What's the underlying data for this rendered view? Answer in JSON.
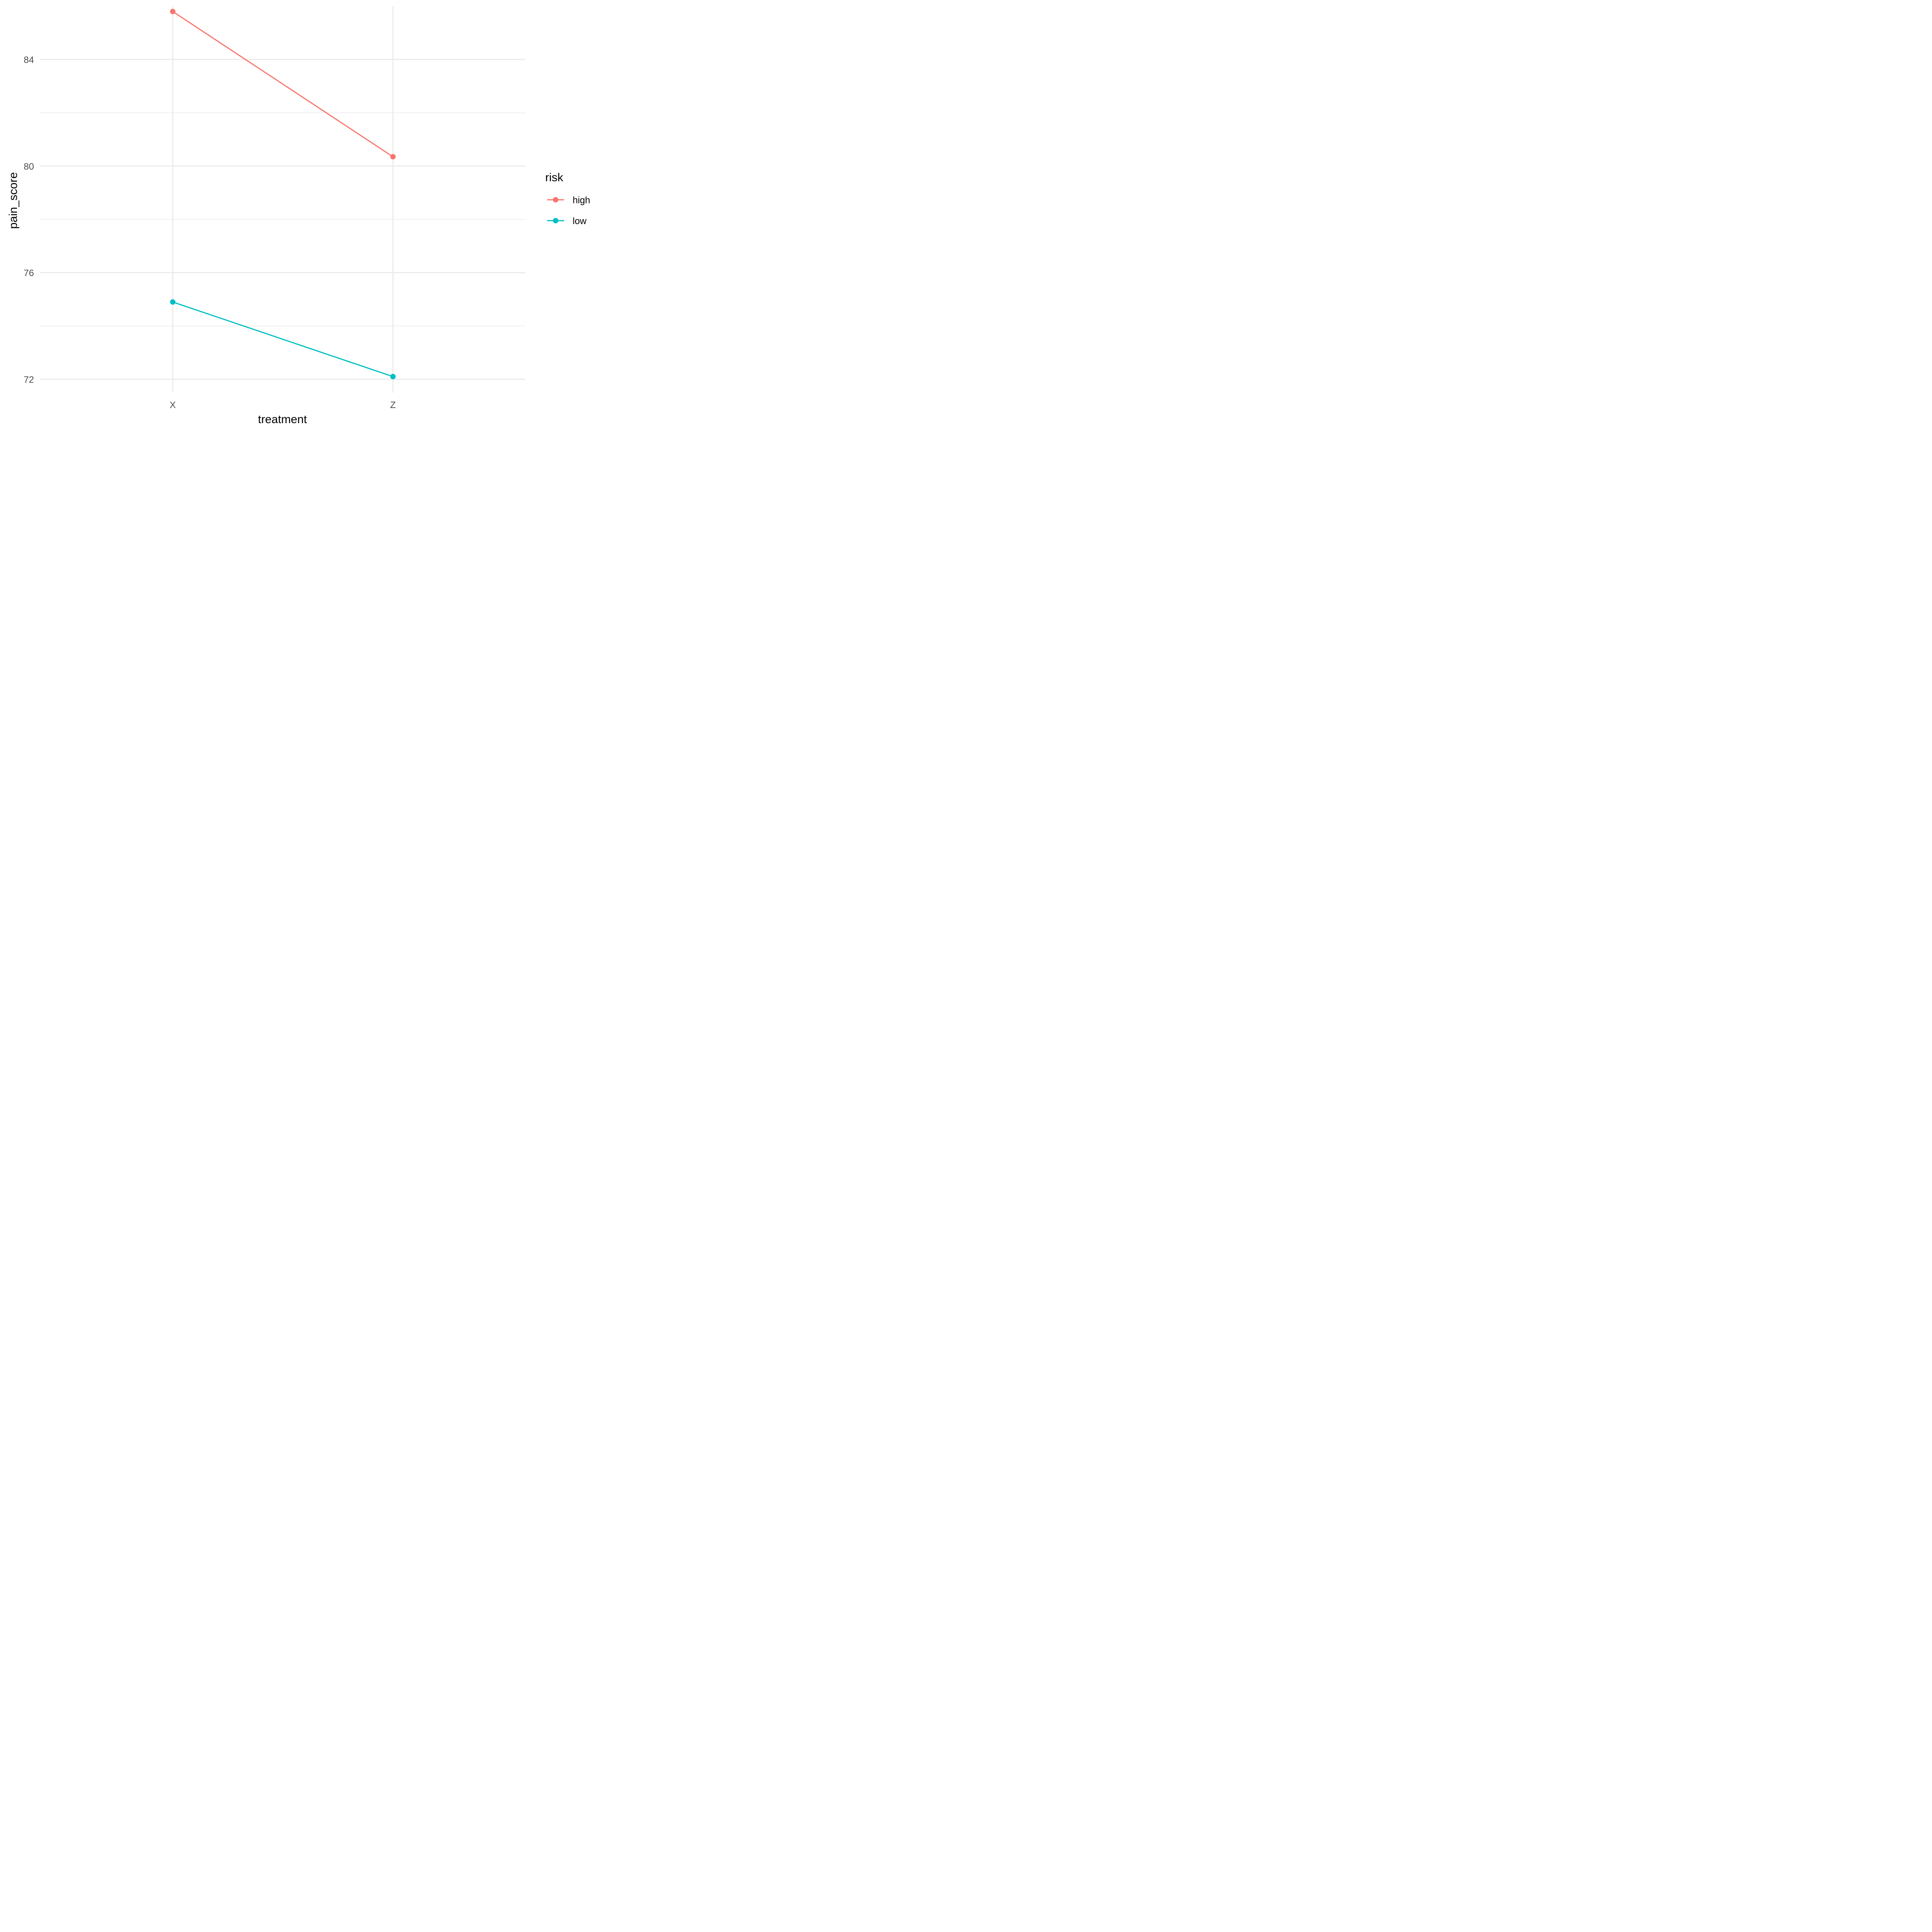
{
  "chart_data": {
    "type": "line",
    "xlabel": "treatment",
    "ylabel": "pain_score",
    "categories": [
      "X",
      "Z"
    ],
    "ylim": [
      71.5,
      86.0
    ],
    "yticks": [
      72,
      76,
      80,
      84
    ],
    "grid": true,
    "legend": {
      "title": "risk",
      "position": "right"
    },
    "series": [
      {
        "name": "high",
        "color": "#f8766d",
        "values": [
          85.8,
          80.35
        ]
      },
      {
        "name": "low",
        "color": "#00bfc4",
        "values": [
          74.9,
          72.1
        ]
      }
    ]
  }
}
